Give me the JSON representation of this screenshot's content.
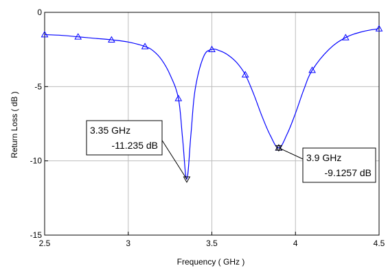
{
  "chart_data": {
    "type": "line",
    "title": "",
    "xlabel": "Frequency ( GHz )",
    "ylabel": "Return Loss ( dB )",
    "xlim": [
      2.5,
      4.5
    ],
    "ylim": [
      -15,
      0
    ],
    "grid": true,
    "xticks": [
      "2.5",
      "3",
      "3.5",
      "4",
      "4.5"
    ],
    "yticks": [
      "-15",
      "-10",
      "-5",
      "0"
    ],
    "series": [
      {
        "color": "#0000ff",
        "x": [
          2.5,
          2.6,
          2.7,
          2.8,
          2.9,
          3.0,
          3.1,
          3.15,
          3.2,
          3.25,
          3.3,
          3.325,
          3.35,
          3.375,
          3.4,
          3.45,
          3.5,
          3.55,
          3.6,
          3.65,
          3.7,
          3.75,
          3.8,
          3.85,
          3.9,
          3.95,
          4.0,
          4.05,
          4.1,
          4.2,
          4.3,
          4.4,
          4.5
        ],
        "y": [
          -1.5,
          -1.55,
          -1.65,
          -1.75,
          -1.85,
          -2.0,
          -2.3,
          -2.6,
          -3.2,
          -4.2,
          -5.8,
          -8.5,
          -11.235,
          -8.2,
          -5.2,
          -3.0,
          -2.5,
          -2.6,
          -2.9,
          -3.4,
          -4.2,
          -5.5,
          -7.0,
          -8.3,
          -9.1257,
          -8.2,
          -6.8,
          -5.2,
          -3.9,
          -2.5,
          -1.7,
          -1.3,
          -1.1
        ]
      }
    ],
    "triangle_markers": [
      {
        "x": 2.5,
        "y": -1.5
      },
      {
        "x": 2.7,
        "y": -1.65
      },
      {
        "x": 2.9,
        "y": -1.85
      },
      {
        "x": 3.1,
        "y": -2.3
      },
      {
        "x": 3.3,
        "y": -5.8
      },
      {
        "x": 3.5,
        "y": -2.5
      },
      {
        "x": 3.7,
        "y": -4.2
      },
      {
        "x": 3.9,
        "y": -9.1257
      },
      {
        "x": 4.1,
        "y": -3.9
      },
      {
        "x": 4.3,
        "y": -1.7
      },
      {
        "x": 4.5,
        "y": -1.1
      }
    ],
    "annotations": [
      {
        "x": 3.35,
        "y": -11.235,
        "line1": "3.35 GHz",
        "line2": "-11.235 dB",
        "symbol": "inverted-triangle"
      },
      {
        "x": 3.9,
        "y": -9.1257,
        "line1": "3.9 GHz",
        "line2": "-9.1257 dB",
        "symbol": "star"
      }
    ]
  }
}
